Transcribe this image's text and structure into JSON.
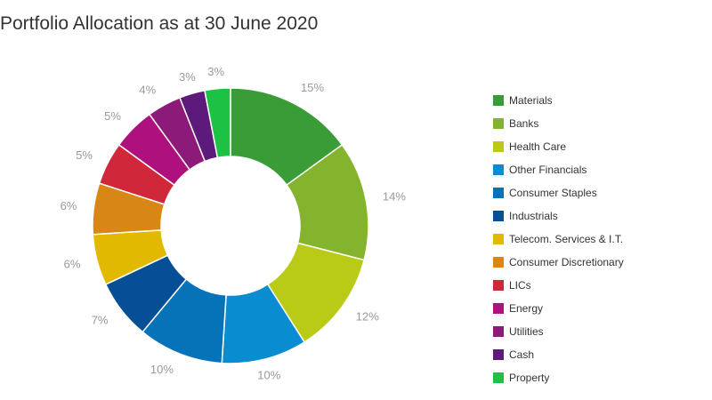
{
  "chart_data": {
    "type": "pie",
    "title": "Portfolio Allocation as at 30 June 2020",
    "donut": true,
    "legend_position": "right",
    "categories": [
      "Materials",
      "Banks",
      "Health Care",
      "Other Financials",
      "Consumer Staples",
      "Industrials",
      "Telecom. Services & I.T.",
      "Consumer Discretionary",
      "LICs",
      "Energy",
      "Utilities",
      "Cash",
      "Property"
    ],
    "values": [
      15,
      14,
      12,
      10,
      10,
      7,
      6,
      6,
      5,
      5,
      4,
      3,
      3
    ],
    "labels": [
      "15%",
      "14%",
      "12%",
      "10%",
      "10%",
      "7%",
      "6%",
      "6%",
      "5%",
      "5%",
      "4%",
      "3%",
      "3%"
    ],
    "colors": [
      "#3a9c37",
      "#84b32e",
      "#b9cb17",
      "#0a8cd1",
      "#0673b9",
      "#064f96",
      "#e1b900",
      "#d88716",
      "#d1273a",
      "#ae107d",
      "#8c1a78",
      "#5d1a7b",
      "#1dc143"
    ]
  }
}
